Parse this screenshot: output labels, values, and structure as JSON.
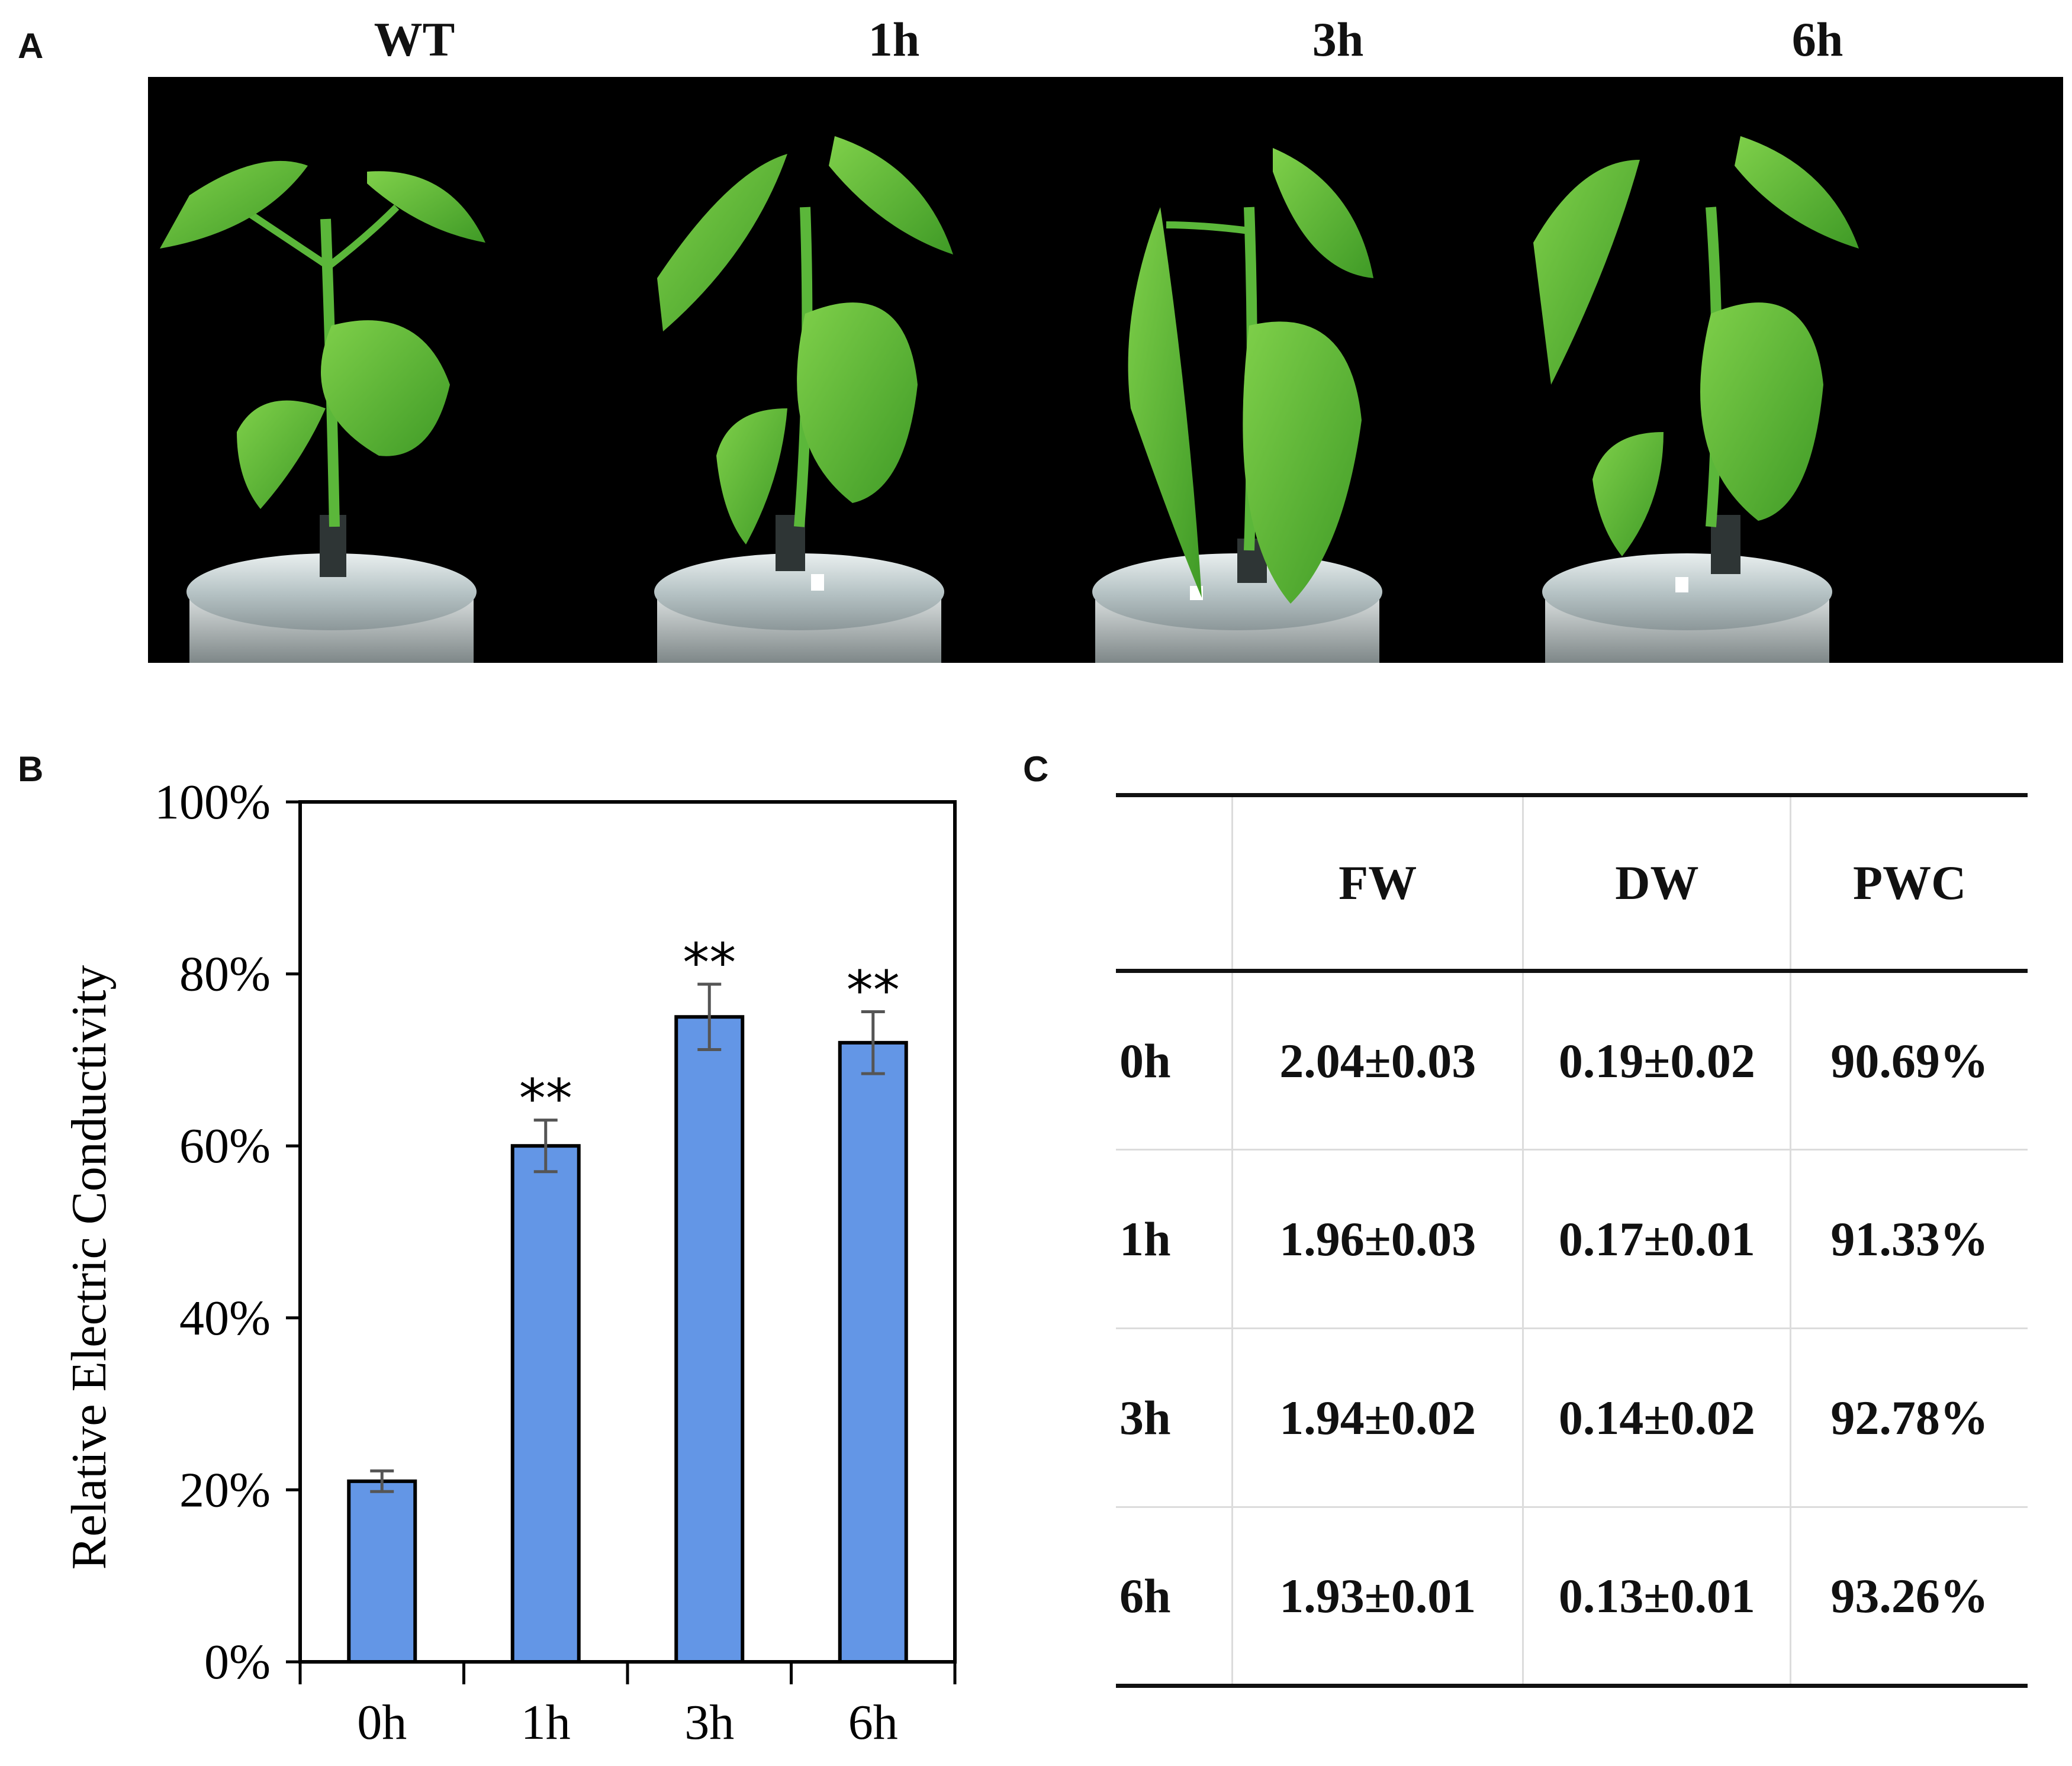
{
  "panels": {
    "a": "A",
    "b": "B",
    "c": "C"
  },
  "photos": {
    "titles": [
      "WT",
      "1h",
      "3h",
      "6h"
    ]
  },
  "chart_data": {
    "type": "bar",
    "categories": [
      "0h",
      "1h",
      "3h",
      "6h"
    ],
    "values": [
      21,
      60,
      75,
      72
    ],
    "errors": [
      1.2,
      3,
      3.8,
      3.6
    ],
    "annotations": [
      "",
      "**",
      "**",
      "**"
    ],
    "ylabel": "Relative Electric Conductivity",
    "xlabel": "",
    "ylim": [
      0,
      100
    ],
    "yticks": [
      "0%",
      "20%",
      "40%",
      "60%",
      "80%",
      "100%"
    ],
    "bar_color": "#6396e6",
    "grid": false
  },
  "table": {
    "headers": [
      "",
      "FW",
      "DW",
      "PWC"
    ],
    "rows": [
      [
        "0h",
        "2.04±0.03",
        "0.19±0.02",
        "90.69%"
      ],
      [
        "1h",
        "1.96±0.03",
        "0.17±0.01",
        "91.33%"
      ],
      [
        "3h",
        "1.94±0.02",
        "0.14±0.02",
        "92.78%"
      ],
      [
        "6h",
        "1.93±0.01",
        "0.13±0.01",
        "93.26%"
      ]
    ]
  }
}
